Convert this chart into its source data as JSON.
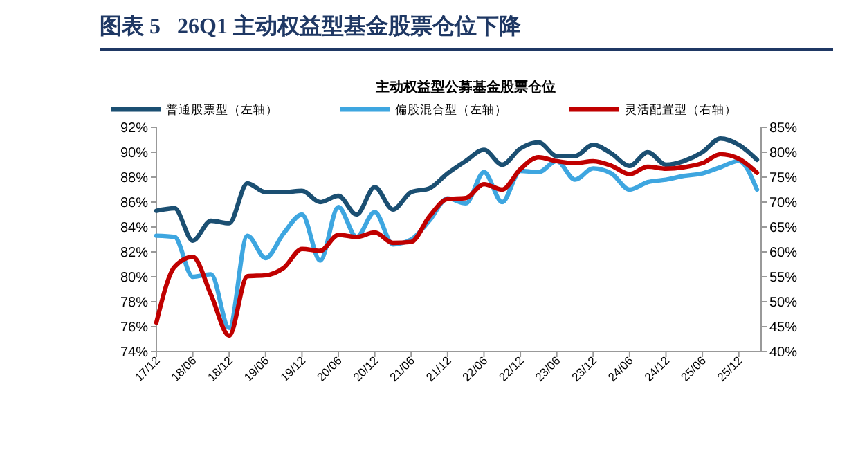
{
  "chart_data": {
    "type": "line",
    "title": "图表 5   26Q1 主动权益型基金股票仓位下降",
    "subtitle": "主动权益型公募基金股票仓位",
    "categories": [
      "17/12",
      null,
      "18/06",
      null,
      "18/12",
      null,
      "19/06",
      null,
      "19/12",
      null,
      "20/06",
      null,
      "20/12",
      null,
      "21/06",
      null,
      "21/12",
      null,
      "22/06",
      null,
      "22/12",
      null,
      "23/06",
      null,
      "23/12",
      null,
      "24/06",
      null,
      "24/12",
      null,
      "25/06",
      null,
      "25/12",
      null
    ],
    "series": [
      {
        "name": "普通股票型（左轴）",
        "color": "#1b4f72",
        "values": [
          85.3,
          85.5,
          82.9,
          84.5,
          84.3,
          87.5,
          86.8,
          86.8,
          86.9,
          86.0,
          86.5,
          85.0,
          87.2,
          85.4,
          86.8,
          87.1,
          88.3,
          89.3,
          90.2,
          89.0,
          90.3,
          90.8,
          89.7,
          89.7,
          90.6,
          89.9,
          88.9,
          90.0,
          89.0,
          89.3,
          90.0,
          91.1,
          90.6,
          89.4
        ]
      },
      {
        "name": "偏股混合型（左轴）",
        "color": "#3ea6e0",
        "values": [
          83.3,
          83.2,
          80.0,
          80.2,
          75.9,
          83.3,
          81.5,
          83.5,
          85.0,
          81.3,
          85.6,
          83.2,
          85.2,
          82.6,
          83.0,
          84.5,
          86.3,
          85.9,
          88.4,
          86.0,
          88.5,
          88.4,
          89.3,
          87.8,
          88.7,
          88.3,
          87.0,
          87.6,
          87.8,
          88.1,
          88.3,
          88.8,
          89.3,
          87.0
        ]
      },
      {
        "name": "灵活配置型（右轴）",
        "color": "#c00000",
        "axis": "y2",
        "values": [
          45.8,
          57.0,
          59.0,
          51.4,
          43.2,
          55.1,
          55.3,
          56.8,
          60.6,
          60.2,
          63.4,
          63.0,
          63.9,
          61.8,
          62.0,
          67.1,
          70.6,
          70.8,
          73.6,
          72.5,
          76.6,
          79.0,
          78.2,
          77.8,
          78.2,
          77.3,
          75.6,
          77.1,
          76.7,
          77.0,
          77.8,
          79.6,
          78.7,
          75.9
        ]
      }
    ],
    "ylim": [
      74,
      92
    ],
    "yticks": [
      {
        "value": 74,
        "label": "74%"
      },
      {
        "value": 76,
        "label": "76%"
      },
      {
        "value": 78,
        "label": "78%"
      },
      {
        "value": 80,
        "label": "80%"
      },
      {
        "value": 82,
        "label": "82%"
      },
      {
        "value": 84,
        "label": "84%"
      },
      {
        "value": 86,
        "label": "86%"
      },
      {
        "value": 88,
        "label": "88%"
      },
      {
        "value": 90,
        "label": "90%"
      },
      {
        "value": 92,
        "label": "92%"
      }
    ],
    "y2lim": [
      40,
      85
    ],
    "y2ticks": [
      {
        "value": 40,
        "label": "40%"
      },
      {
        "value": 45,
        "label": "45%"
      },
      {
        "value": 50,
        "label": "50%"
      },
      {
        "value": 55,
        "label": "55%"
      },
      {
        "value": 60,
        "label": "60%"
      },
      {
        "value": 65,
        "label": "65%"
      },
      {
        "value": 70,
        "label": "70%"
      },
      {
        "value": 75,
        "label": "75%"
      },
      {
        "value": 80,
        "label": "80%"
      },
      {
        "value": 85,
        "label": "85%"
      }
    ],
    "legend": "top",
    "grid": false,
    "marker": "none",
    "line_style": "solid"
  }
}
